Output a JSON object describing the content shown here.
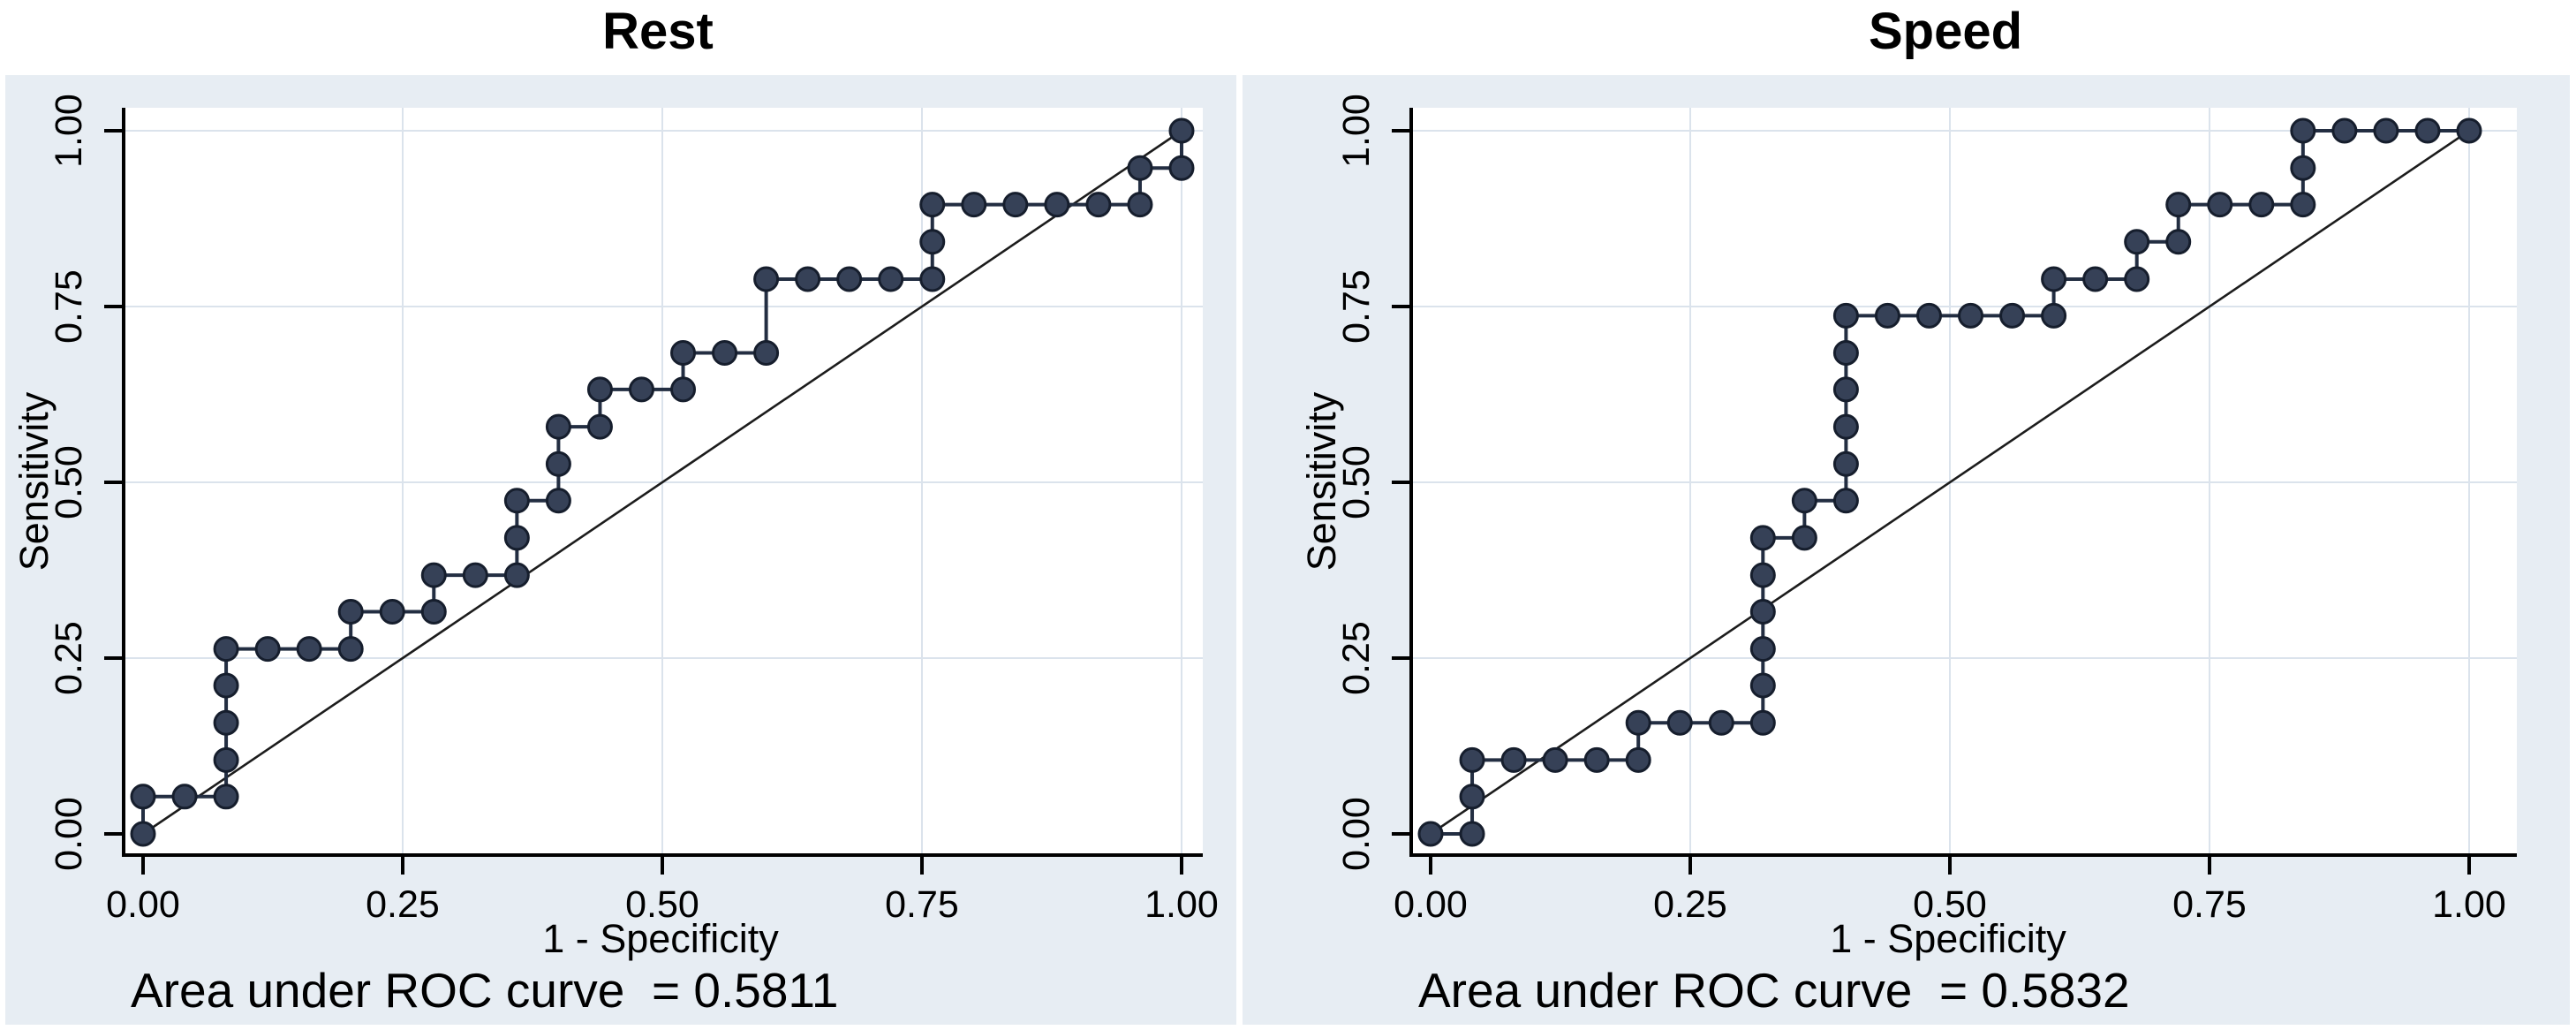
{
  "figure": {
    "background": "#ffffff",
    "panel_background": "#e7edf3",
    "plot_background": "#ffffff",
    "grid_color": "#dbe3ec",
    "axis_color": "#000000",
    "curve_line_color": "#232e42",
    "marker_fill": "#364157",
    "marker_edge": "#161e2d",
    "reference_line_color": "#1c1c1c"
  },
  "panels": [
    {
      "title": "Rest",
      "y_axis_label": "Sensitivity",
      "x_axis_label": "1 - Specificity",
      "auc_text": "Area under ROC curve  = 0.5811",
      "x_tick_labels": [
        "0.00",
        "0.25",
        "0.50",
        "0.75",
        "1.00"
      ],
      "y_tick_labels": [
        "0.00",
        "0.25",
        "0.50",
        "0.75",
        "1.00"
      ]
    },
    {
      "title": "Speed",
      "y_axis_label": "Sensitivity",
      "x_axis_label": "1 - Specificity",
      "auc_text": "Area under ROC curve  = 0.5832",
      "x_tick_labels": [
        "0.00",
        "0.25",
        "0.50",
        "0.75",
        "1.00"
      ],
      "y_tick_labels": [
        "0.00",
        "0.25",
        "0.50",
        "0.75",
        "1.00"
      ]
    }
  ],
  "chart_data": [
    {
      "type": "line",
      "subtype": "roc-step-curve",
      "title": "Rest",
      "xlabel": "1 - Specificity",
      "ylabel": "Sensitivity",
      "xlim": [
        0,
        1
      ],
      "ylim": [
        0,
        1
      ],
      "x_ticks": [
        0,
        0.25,
        0.5,
        0.75,
        1.0
      ],
      "y_ticks": [
        0,
        0.25,
        0.5,
        0.75,
        1.0
      ],
      "grid": true,
      "legend": "none",
      "auc": 0.5811,
      "reference_line": [
        [
          0,
          0
        ],
        [
          1,
          1
        ]
      ],
      "points": [
        [
          0.0,
          0.0
        ],
        [
          0.0,
          0.053
        ],
        [
          0.04,
          0.053
        ],
        [
          0.08,
          0.053
        ],
        [
          0.08,
          0.105
        ],
        [
          0.08,
          0.158
        ],
        [
          0.08,
          0.211
        ],
        [
          0.08,
          0.263
        ],
        [
          0.12,
          0.263
        ],
        [
          0.16,
          0.263
        ],
        [
          0.2,
          0.263
        ],
        [
          0.2,
          0.316
        ],
        [
          0.24,
          0.316
        ],
        [
          0.28,
          0.316
        ],
        [
          0.28,
          0.368
        ],
        [
          0.32,
          0.368
        ],
        [
          0.36,
          0.368
        ],
        [
          0.36,
          0.421
        ],
        [
          0.36,
          0.474
        ],
        [
          0.4,
          0.474
        ],
        [
          0.4,
          0.526
        ],
        [
          0.4,
          0.579
        ],
        [
          0.44,
          0.579
        ],
        [
          0.44,
          0.632
        ],
        [
          0.48,
          0.632
        ],
        [
          0.52,
          0.632
        ],
        [
          0.52,
          0.684
        ],
        [
          0.56,
          0.684
        ],
        [
          0.6,
          0.684
        ],
        [
          0.6,
          0.789
        ],
        [
          0.64,
          0.789
        ],
        [
          0.68,
          0.789
        ],
        [
          0.72,
          0.789
        ],
        [
          0.76,
          0.789
        ],
        [
          0.76,
          0.842
        ],
        [
          0.76,
          0.895
        ],
        [
          0.8,
          0.895
        ],
        [
          0.84,
          0.895
        ],
        [
          0.88,
          0.895
        ],
        [
          0.92,
          0.895
        ],
        [
          0.96,
          0.895
        ],
        [
          0.96,
          0.947
        ],
        [
          1.0,
          0.947
        ],
        [
          1.0,
          1.0
        ]
      ]
    },
    {
      "type": "line",
      "subtype": "roc-step-curve",
      "title": "Speed",
      "xlabel": "1 - Specificity",
      "ylabel": "Sensitivity",
      "xlim": [
        0,
        1
      ],
      "ylim": [
        0,
        1
      ],
      "x_ticks": [
        0,
        0.25,
        0.5,
        0.75,
        1.0
      ],
      "y_ticks": [
        0,
        0.25,
        0.5,
        0.75,
        1.0
      ],
      "grid": true,
      "legend": "none",
      "auc": 0.5832,
      "reference_line": [
        [
          0,
          0
        ],
        [
          1,
          1
        ]
      ],
      "points": [
        [
          0.0,
          0.0
        ],
        [
          0.04,
          0.0
        ],
        [
          0.04,
          0.053
        ],
        [
          0.04,
          0.105
        ],
        [
          0.08,
          0.105
        ],
        [
          0.12,
          0.105
        ],
        [
          0.16,
          0.105
        ],
        [
          0.2,
          0.105
        ],
        [
          0.2,
          0.158
        ],
        [
          0.24,
          0.158
        ],
        [
          0.28,
          0.158
        ],
        [
          0.32,
          0.158
        ],
        [
          0.32,
          0.211
        ],
        [
          0.32,
          0.263
        ],
        [
          0.32,
          0.316
        ],
        [
          0.32,
          0.368
        ],
        [
          0.32,
          0.421
        ],
        [
          0.36,
          0.421
        ],
        [
          0.36,
          0.474
        ],
        [
          0.4,
          0.474
        ],
        [
          0.4,
          0.526
        ],
        [
          0.4,
          0.579
        ],
        [
          0.4,
          0.632
        ],
        [
          0.4,
          0.684
        ],
        [
          0.4,
          0.737
        ],
        [
          0.44,
          0.737
        ],
        [
          0.48,
          0.737
        ],
        [
          0.52,
          0.737
        ],
        [
          0.56,
          0.737
        ],
        [
          0.6,
          0.737
        ],
        [
          0.6,
          0.789
        ],
        [
          0.64,
          0.789
        ],
        [
          0.68,
          0.789
        ],
        [
          0.68,
          0.842
        ],
        [
          0.72,
          0.842
        ],
        [
          0.72,
          0.895
        ],
        [
          0.76,
          0.895
        ],
        [
          0.8,
          0.895
        ],
        [
          0.84,
          0.895
        ],
        [
          0.84,
          0.947
        ],
        [
          0.84,
          1.0
        ],
        [
          0.88,
          1.0
        ],
        [
          0.92,
          1.0
        ],
        [
          0.96,
          1.0
        ],
        [
          1.0,
          1.0
        ]
      ]
    }
  ]
}
